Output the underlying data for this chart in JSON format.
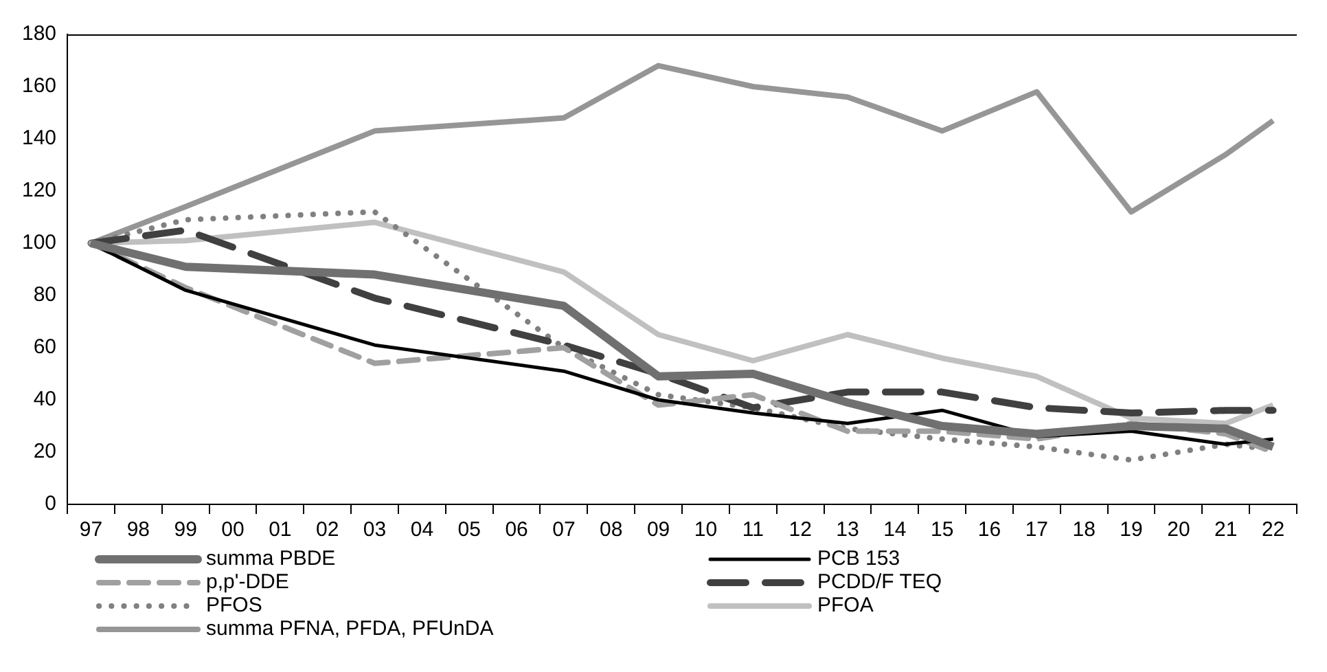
{
  "chart_data": {
    "type": "line",
    "categories": [
      "97",
      "98",
      "99",
      "00",
      "01",
      "02",
      "03",
      "04",
      "05",
      "06",
      "07",
      "08",
      "09",
      "10",
      "11",
      "12",
      "13",
      "14",
      "15",
      "16",
      "17",
      "18",
      "19",
      "20",
      "21",
      "22"
    ],
    "series": [
      {
        "name": "summa PBDE",
        "color": "#707070",
        "line_style": "solid",
        "values": [
          100,
          null,
          91,
          null,
          null,
          null,
          88,
          null,
          null,
          null,
          76,
          null,
          49,
          null,
          50,
          null,
          39,
          null,
          30,
          null,
          27,
          null,
          30,
          null,
          29,
          22
        ]
      },
      {
        "name": "PCB 153",
        "color": "#000000",
        "line_style": "solid",
        "values": [
          100,
          null,
          82,
          null,
          null,
          null,
          61,
          null,
          null,
          null,
          51,
          null,
          40,
          null,
          35,
          null,
          31,
          null,
          36,
          null,
          26,
          null,
          28,
          null,
          23,
          25
        ]
      },
      {
        "name": "p,p'-DDE",
        "color": "#a0a0a0",
        "line_style": "dashed",
        "values": [
          100,
          null,
          83,
          null,
          null,
          null,
          54,
          null,
          null,
          null,
          60,
          null,
          38,
          null,
          42,
          null,
          28,
          null,
          28,
          null,
          25,
          null,
          31,
          null,
          27,
          20
        ]
      },
      {
        "name": "PCDD/F TEQ",
        "color": "#404040",
        "line_style": "dashed",
        "values": [
          100,
          null,
          105,
          null,
          null,
          null,
          79,
          null,
          null,
          null,
          61,
          null,
          50,
          null,
          37,
          null,
          43,
          null,
          43,
          null,
          37,
          null,
          35,
          null,
          36,
          36
        ]
      },
      {
        "name": "PFOS",
        "color": "#808080",
        "line_style": "dotted",
        "values": [
          100,
          null,
          109,
          null,
          null,
          null,
          112,
          null,
          null,
          null,
          60,
          null,
          42,
          null,
          37,
          null,
          29,
          null,
          25,
          null,
          22,
          null,
          17,
          null,
          23,
          21
        ]
      },
      {
        "name": "PFOA",
        "color": "#c0c0c0",
        "line_style": "solid",
        "values": [
          100,
          null,
          101,
          null,
          null,
          null,
          108,
          null,
          null,
          null,
          89,
          null,
          65,
          null,
          55,
          null,
          65,
          null,
          56,
          null,
          49,
          null,
          33,
          null,
          31,
          38
        ]
      },
      {
        "name": "summa PFNA, PFDA, PFUnDA",
        "color": "#969696",
        "line_style": "solid",
        "values": [
          100,
          null,
          114,
          null,
          null,
          null,
          143,
          null,
          null,
          null,
          148,
          null,
          168,
          null,
          160,
          null,
          156,
          null,
          143,
          null,
          158,
          null,
          112,
          null,
          134,
          147
        ]
      }
    ],
    "ylim": [
      0,
      180
    ],
    "yticks": [
      0,
      20,
      40,
      60,
      80,
      100,
      120,
      140,
      160,
      180
    ],
    "grid": false,
    "legend": "bottom",
    "marker": "none"
  }
}
